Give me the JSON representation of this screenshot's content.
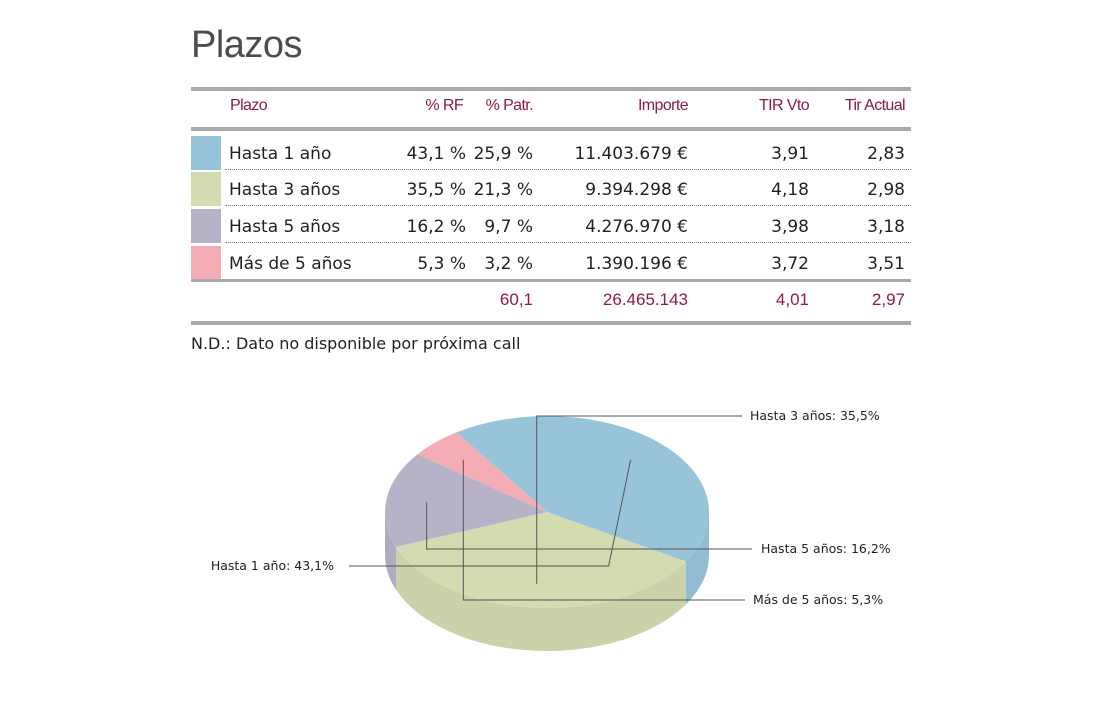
{
  "page_title": "Plazos",
  "table": {
    "headers": {
      "plazo": "Plazo",
      "rf": "% RF",
      "patr": "% Patr.",
      "importe": "Importe",
      "tir_vto": "TIR Vto",
      "tir_actual": "Tir Actual"
    },
    "rows": [
      {
        "plazo": "Hasta 1 año",
        "rf": "43,1 %",
        "patr": "25,9 %",
        "importe": "11.403.679 €",
        "tir_vto": "3,91",
        "tir_actual": "2,83",
        "color": "#98c4da"
      },
      {
        "plazo": "Hasta 3 años",
        "rf": "35,5 %",
        "patr": "21,3 %",
        "importe": "9.394.298 €",
        "tir_vto": "4,18",
        "tir_actual": "2,98",
        "color": "#d3dbb1"
      },
      {
        "plazo": "Hasta 5 años",
        "rf": "16,2 %",
        "patr": "9,7 %",
        "importe": "4.276.970 €",
        "tir_vto": "3,98",
        "tir_actual": "3,18",
        "color": "#b8b2c9"
      },
      {
        "plazo": "Más de 5 años",
        "rf": "5,3 %",
        "patr": "3,2 %",
        "importe": "1.390.196 €",
        "tir_vto": "3,72",
        "tir_actual": "3,51",
        "color": "#f5adb5"
      }
    ],
    "totals": {
      "patr": "60,1",
      "importe": "26.465.143",
      "tir_vto": "4,01",
      "tir_actual": "2,97"
    }
  },
  "note": "N.D.: Dato no disponible por próxima call",
  "chart_data": {
    "type": "pie",
    "style": "3d",
    "categories": [
      "Hasta 1 año",
      "Hasta 3 años",
      "Hasta 5 años",
      "Más de 5 años"
    ],
    "values": [
      43.1,
      35.5,
      16.2,
      5.3
    ],
    "colors": [
      "#98c4da",
      "#d3dbb1",
      "#b8b2c9",
      "#f5adb5"
    ],
    "labels": [
      "Hasta 1 año: 43,1%",
      "Hasta 3 años: 35,5%",
      "Hasta 5 años: 16,2%",
      "Más de 5 años: 5,3%"
    ],
    "legend": "none"
  }
}
